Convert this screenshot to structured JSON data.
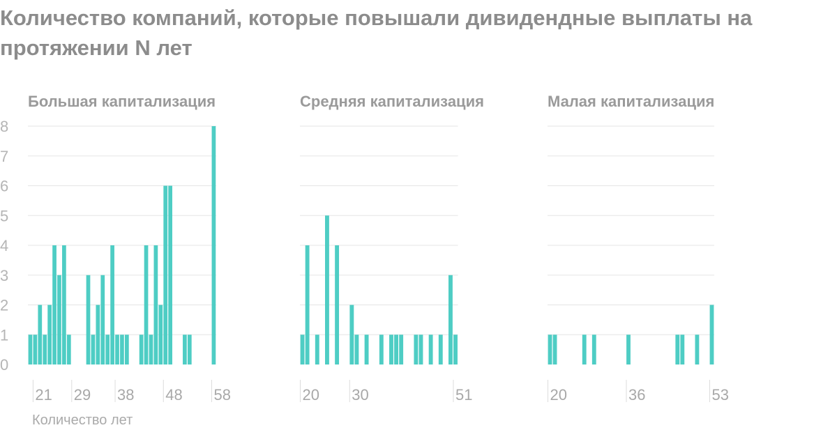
{
  "title": "Количество компаний, которые повышали дивидендные выплаты на протяжении N лет",
  "colors": {
    "bar": "#4ecdc4",
    "title": "#8c8c8c",
    "grid": "#e5e5e5"
  },
  "chart_data": [
    {
      "type": "bar",
      "title": "Большая капитализация",
      "xlabel": "Количество лет",
      "ylabel": "",
      "ylim": [
        0,
        8
      ],
      "yticks": [
        0,
        1,
        2,
        3,
        4,
        5,
        6,
        7,
        8
      ],
      "xrange": [
        20,
        58
      ],
      "xticks": [
        21,
        29,
        38,
        48,
        58
      ],
      "categories": [
        20,
        21,
        22,
        23,
        24,
        25,
        26,
        27,
        28,
        29,
        30,
        31,
        32,
        33,
        34,
        35,
        36,
        37,
        38,
        39,
        40,
        41,
        42,
        43,
        44,
        45,
        46,
        47,
        48,
        49,
        50,
        51,
        52,
        53,
        54,
        55,
        56,
        57,
        58
      ],
      "values": [
        1,
        1,
        2,
        1,
        2,
        4,
        3,
        4,
        1,
        0,
        0,
        0,
        3,
        1,
        2,
        3,
        1,
        4,
        1,
        1,
        1,
        0,
        0,
        1,
        4,
        1,
        4,
        2,
        6,
        6,
        0,
        0,
        1,
        1,
        0,
        0,
        0,
        0,
        8
      ]
    },
    {
      "type": "bar",
      "title": "Средняя капитализация",
      "xlabel": "",
      "ylabel": "",
      "ylim": [
        0,
        8
      ],
      "xrange": [
        20,
        51
      ],
      "xticks": [
        20,
        30,
        51
      ],
      "categories": [
        20,
        21,
        22,
        23,
        24,
        25,
        26,
        27,
        28,
        29,
        30,
        31,
        32,
        33,
        34,
        35,
        36,
        37,
        38,
        39,
        40,
        41,
        42,
        43,
        44,
        45,
        46,
        47,
        48,
        49,
        50,
        51
      ],
      "values": [
        1,
        4,
        0,
        1,
        0,
        5,
        0,
        4,
        0,
        0,
        2,
        1,
        0,
        1,
        0,
        0,
        1,
        0,
        1,
        1,
        1,
        0,
        0,
        1,
        1,
        0,
        1,
        0,
        1,
        0,
        3,
        1
      ]
    },
    {
      "type": "bar",
      "title": "Малая капитализация",
      "xlabel": "",
      "ylabel": "",
      "ylim": [
        0,
        8
      ],
      "xrange": [
        20,
        53
      ],
      "xticks": [
        20,
        36,
        53
      ],
      "categories": [
        20,
        21,
        22,
        23,
        24,
        25,
        26,
        27,
        28,
        29,
        30,
        31,
        32,
        33,
        34,
        35,
        36,
        37,
        38,
        39,
        40,
        41,
        42,
        43,
        44,
        45,
        46,
        47,
        48,
        49,
        50,
        51,
        52,
        53
      ],
      "values": [
        1,
        1,
        0,
        0,
        0,
        0,
        0,
        1,
        0,
        1,
        0,
        0,
        0,
        0,
        0,
        0,
        1,
        0,
        0,
        0,
        0,
        0,
        0,
        0,
        0,
        0,
        1,
        1,
        0,
        0,
        1,
        0,
        0,
        2
      ]
    }
  ]
}
